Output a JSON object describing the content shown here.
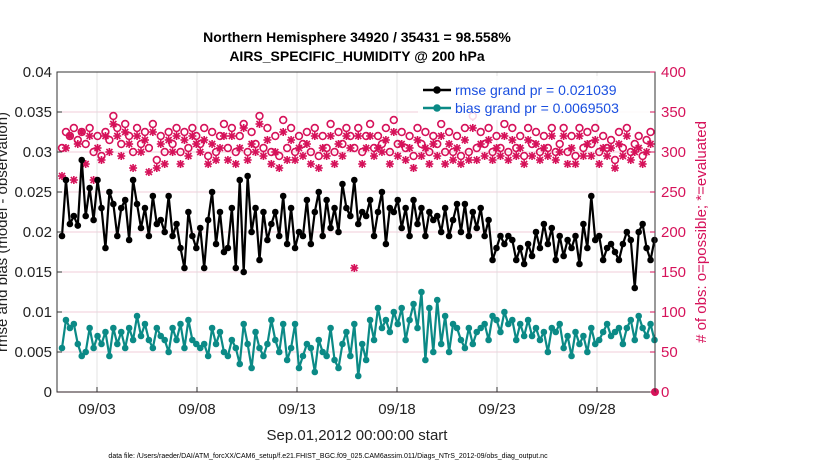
{
  "chart_data": {
    "type": "line",
    "title": "Northern Hemisphere 34920 / 35431 = 98.558%",
    "subtitle": "AIRS_SPECIFIC_HUMIDITY @ 200 hPa",
    "xlabel": "Sep.01,2012 00:00:00 start",
    "ylabel": "rmse and bias (model - observation)",
    "ylabel_right": "# of obs: o=possible; *=evaluated",
    "footer": "data file: /Users/raeder/DAI/ATM_forcXX/CAM6_setup/f.e21.FHIST_BGC.f09_025.CAM6assim.011/Diags_NTrS_2012-09/obs_diag_output.nc",
    "xlim": [
      1.0,
      30.9
    ],
    "ylim": [
      0,
      0.04
    ],
    "ylim_right": [
      0,
      400
    ],
    "x_ticks": [
      3,
      8,
      13,
      18,
      23,
      28
    ],
    "x_tick_labels": [
      "09/03",
      "09/08",
      "09/13",
      "09/18",
      "09/23",
      "09/28"
    ],
    "y_ticks": [
      0,
      0.005,
      0.01,
      0.015,
      0.02,
      0.025,
      0.03,
      0.035,
      0.04
    ],
    "y_tick_labels": [
      "0",
      "0.005",
      "0.01",
      "0.015",
      "0.02",
      "0.025",
      "0.03",
      "0.035",
      "0.04"
    ],
    "y_ticks_right": [
      0,
      50,
      100,
      150,
      200,
      250,
      300,
      350,
      400
    ],
    "y_tick_labels_right": [
      "0",
      "50",
      "100",
      "150",
      "200",
      "250",
      "300",
      "350",
      "400"
    ],
    "grid": true,
    "legend_position": "top-right",
    "series": [
      {
        "name": "rmse grand pr = 0.021039",
        "color": "#000000",
        "axis": "left",
        "values": [
          0.0195,
          0.0265,
          0.021,
          0.022,
          0.0208,
          0.029,
          0.022,
          0.0255,
          0.0215,
          0.0265,
          0.023,
          0.018,
          0.025,
          0.0235,
          0.0195,
          0.023,
          0.024,
          0.019,
          0.0265,
          0.0235,
          0.0205,
          0.023,
          0.0195,
          0.0245,
          0.021,
          0.0215,
          0.02,
          0.0245,
          0.0195,
          0.021,
          0.018,
          0.0155,
          0.0225,
          0.0195,
          0.018,
          0.0205,
          0.0155,
          0.0215,
          0.025,
          0.0185,
          0.0225,
          0.0175,
          0.018,
          0.023,
          0.0155,
          0.0265,
          0.015,
          0.027,
          0.02,
          0.023,
          0.0165,
          0.0225,
          0.019,
          0.021,
          0.0225,
          0.0195,
          0.0245,
          0.0185,
          0.023,
          0.018,
          0.02,
          0.0195,
          0.024,
          0.0185,
          0.0225,
          0.025,
          0.0195,
          0.024,
          0.0205,
          0.023,
          0.02,
          0.026,
          0.023,
          0.022,
          0.0265,
          0.021,
          0.0225,
          0.022,
          0.024,
          0.0195,
          0.0225,
          0.025,
          0.0185,
          0.023,
          0.0225,
          0.024,
          0.0205,
          0.023,
          0.0195,
          0.024,
          0.021,
          0.023,
          0.0195,
          0.0225,
          0.0215,
          0.022,
          0.02,
          0.023,
          0.0195,
          0.0215,
          0.0235,
          0.02,
          0.0235,
          0.0195,
          0.0225,
          0.0205,
          0.023,
          0.0195,
          0.0215,
          0.0165,
          0.018,
          0.0195,
          0.0185,
          0.0195,
          0.019,
          0.0165,
          0.018,
          0.016,
          0.0185,
          0.017,
          0.02,
          0.018,
          0.021,
          0.0185,
          0.0205,
          0.0165,
          0.0195,
          0.017,
          0.019,
          0.018,
          0.0195,
          0.016,
          0.021,
          0.018,
          0.0245,
          0.019,
          0.0195,
          0.0165,
          0.018,
          0.0185,
          0.0175,
          0.0165,
          0.0185,
          0.02,
          0.019,
          0.013,
          0.02,
          0.021,
          0.018,
          0.0165,
          0.019,
          0.021,
          0.017,
          0.0195,
          0.022,
          0.0215,
          0.023,
          0.0205
        ],
        "markers": "filled-circle"
      },
      {
        "name": "bias grand pr = 0.0069503",
        "color": "#0b8a86",
        "axis": "left",
        "values": [
          0.0055,
          0.009,
          0.008,
          0.0085,
          0.006,
          0.0045,
          0.005,
          0.008,
          0.0055,
          0.007,
          0.006,
          0.0075,
          0.0045,
          0.008,
          0.006,
          0.0075,
          0.0055,
          0.008,
          0.0065,
          0.0095,
          0.007,
          0.0085,
          0.0065,
          0.0055,
          0.008,
          0.007,
          0.0065,
          0.005,
          0.008,
          0.0065,
          0.0085,
          0.0055,
          0.009,
          0.0065,
          0.006,
          0.0055,
          0.006,
          0.0045,
          0.008,
          0.006,
          0.0075,
          0.005,
          0.0045,
          0.0065,
          0.0055,
          0.0035,
          0.0085,
          0.006,
          0.003,
          0.0075,
          0.0055,
          0.0045,
          0.006,
          0.009,
          0.0065,
          0.005,
          0.0085,
          0.004,
          0.0055,
          0.0085,
          0.003,
          0.0045,
          0.006,
          0.0055,
          0.0025,
          0.0065,
          0.005,
          0.0045,
          0.008,
          0.004,
          0.003,
          0.006,
          0.0075,
          0.0045,
          0.0085,
          0.002,
          0.006,
          0.004,
          0.009,
          0.0065,
          0.0105,
          0.008,
          0.009,
          0.0075,
          0.01,
          0.0085,
          0.0105,
          0.0065,
          0.009,
          0.011,
          0.008,
          0.0125,
          0.004,
          0.0105,
          0.005,
          0.0115,
          0.006,
          0.0095,
          0.005,
          0.0085,
          0.008,
          0.0065,
          0.0055,
          0.008,
          0.006,
          0.0075,
          0.008,
          0.0085,
          0.0065,
          0.0095,
          0.009,
          0.0075,
          0.01,
          0.0085,
          0.009,
          0.0065,
          0.0085,
          0.007,
          0.009,
          0.007,
          0.008,
          0.0065,
          0.0075,
          0.005,
          0.008,
          0.0075,
          0.0085,
          0.0055,
          0.007,
          0.0045,
          0.0075,
          0.006,
          0.007,
          0.005,
          0.008,
          0.006,
          0.0065,
          0.0075,
          0.0085,
          0.007,
          0.0075,
          0.008,
          0.006,
          0.008,
          0.009,
          0.0065,
          0.0095,
          0.008,
          0.007,
          0.0085,
          0.0065,
          0.0105,
          0.008,
          0.0085,
          0.007,
          0.0075,
          0.007,
          0.008,
          0.0075
        ],
        "markers": "filled-circle"
      },
      {
        "name": "obs possible (o)",
        "color": "#d6125a",
        "axis": "right",
        "style": "markers-only",
        "values": [
          305,
          325,
          320,
          330,
          315,
          325,
          310,
          330,
          300,
          320,
          295,
          325,
          315,
          345,
          330,
          310,
          335,
          320,
          300,
          330,
          310,
          325,
          305,
          335,
          290,
          320,
          300,
          325,
          310,
          330,
          300,
          325,
          305,
          330,
          320,
          310,
          330,
          295,
          325,
          300,
          320,
          335,
          305,
          330,
          300,
          320,
          335,
          300,
          325,
          310,
          345,
          305,
          330,
          300,
          320,
          295,
          340,
          305,
          330,
          300,
          320,
          310,
          325,
          300,
          330,
          295,
          320,
          305,
          335,
          300,
          325,
          310,
          330,
          320,
          305,
          330,
          300,
          320,
          335,
          305,
          320,
          310,
          330,
          300,
          340,
          310,
          325,
          305,
          320,
          295,
          330,
          310,
          325,
          300,
          320,
          310,
          335,
          300,
          325,
          300,
          320,
          295,
          330,
          300,
          345,
          305,
          325,
          310,
          330,
          300,
          320,
          305,
          335,
          300,
          330,
          305,
          320,
          295,
          330,
          310,
          325,
          300,
          320,
          305,
          330,
          300,
          310,
          330,
          300,
          320,
          295,
          330,
          305,
          325,
          310,
          330,
          300,
          320,
          305,
          315,
          290,
          325,
          305,
          330,
          300,
          310,
          320,
          295,
          315,
          325
        ],
        "markers": "open-circle"
      },
      {
        "name": "obs evaluated (*)",
        "color": "#d6125a",
        "axis": "right",
        "style": "markers-only",
        "values": [
          270,
          305,
          320,
          265,
          310,
          325,
          285,
          320,
          265,
          305,
          290,
          320,
          300,
          335,
          320,
          295,
          325,
          310,
          280,
          320,
          300,
          315,
          275,
          325,
          280,
          310,
          285,
          315,
          300,
          320,
          285,
          315,
          295,
          320,
          310,
          300,
          315,
          285,
          310,
          290,
          305,
          320,
          290,
          320,
          285,
          305,
          330,
          290,
          310,
          300,
          335,
          295,
          315,
          285,
          300,
          280,
          325,
          290,
          315,
          290,
          305,
          295,
          310,
          285,
          320,
          280,
          305,
          295,
          320,
          285,
          310,
          295,
          320,
          305,
          155,
          320,
          285,
          305,
          320,
          295,
          305,
          300,
          315,
          285,
          325,
          295,
          310,
          290,
          305,
          280,
          315,
          295,
          305,
          285,
          310,
          295,
          320,
          285,
          310,
          290,
          305,
          285,
          315,
          290,
          330,
          290,
          310,
          295,
          315,
          290,
          305,
          295,
          320,
          290,
          315,
          295,
          305,
          285,
          315,
          295,
          310,
          290,
          305,
          295,
          320,
          290,
          300,
          320,
          285,
          305,
          285,
          320,
          295,
          310,
          295,
          315,
          285,
          305,
          295,
          305,
          280,
          310,
          295,
          320,
          290,
          300,
          305,
          285,
          300,
          310
        ],
        "markers": "asterisk"
      }
    ],
    "x_start": 1.25,
    "x_step": 0.1975
  }
}
